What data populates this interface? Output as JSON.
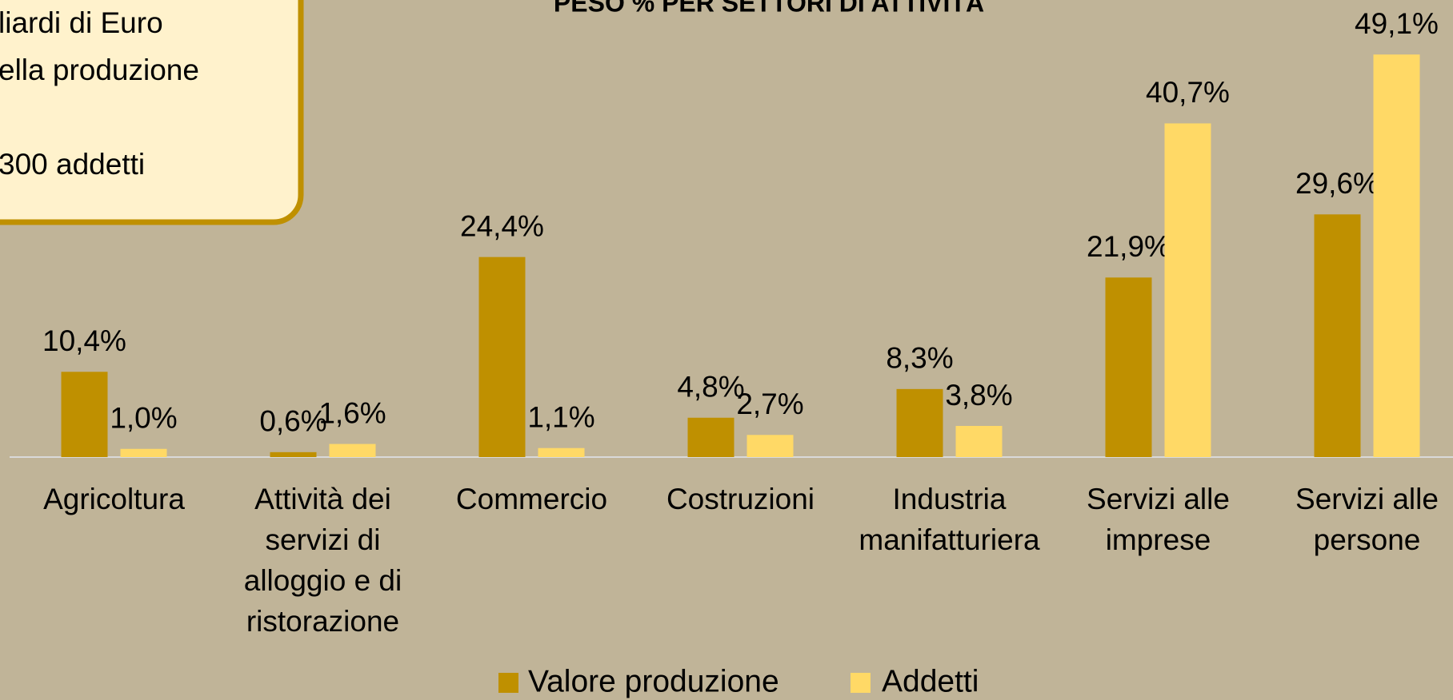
{
  "chart_data": {
    "type": "bar",
    "title": "PESO % PER SETTORI DI ATTIVITÀ",
    "annotations": [
      "liardi di Euro",
      "ella produzione",
      "300 addetti"
    ],
    "categories": [
      "Agricoltura",
      "Attività dei servizi di alloggio e di ristorazione",
      "Commercio",
      "Costruzioni",
      "Industria manifatturiera",
      "Servizi alle imprese",
      "Servizi alle persone"
    ],
    "series": [
      {
        "name": "Valore produzione",
        "color": "#bf9000",
        "values": [
          10.4,
          0.6,
          24.4,
          4.8,
          8.3,
          21.9,
          29.6
        ],
        "value_labels": [
          "10,4%",
          "0,6%",
          "24,4%",
          "4,8%",
          "8,3%",
          "21,9%",
          "29,6%"
        ]
      },
      {
        "name": "Addetti",
        "color": "#ffd966",
        "values": [
          1.0,
          1.6,
          1.1,
          2.7,
          3.8,
          40.7,
          49.1
        ],
        "value_labels": [
          "1,0%",
          "1,6%",
          "1,1%",
          "2,7%",
          "3,8%",
          "40,7%",
          "49,1%"
        ]
      }
    ],
    "ylim": [
      0,
      50
    ]
  }
}
